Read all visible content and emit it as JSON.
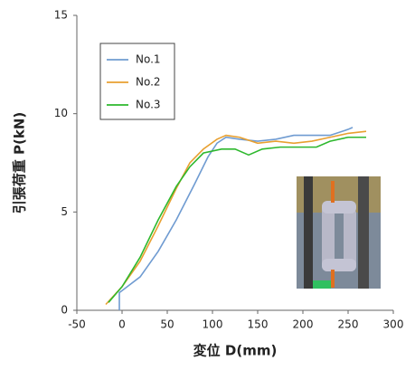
{
  "chart_data": {
    "type": "line",
    "x_label": "変位 D(mm)",
    "y_label": "引張荷重 P(kN)",
    "xlim": [
      -50,
      300
    ],
    "xticks": [
      -50,
      0,
      50,
      100,
      150,
      200,
      250,
      300
    ],
    "ylim": [
      0,
      15
    ],
    "yticks": [
      0,
      5,
      10,
      15
    ],
    "legend": "upper left",
    "series": [
      {
        "name": "No.1",
        "color": "#6f9bd1",
        "x": [
          -3,
          -3,
          0,
          20,
          40,
          60,
          80,
          95,
          105,
          115,
          130,
          150,
          170,
          190,
          210,
          230,
          250,
          255
        ],
        "values": [
          0,
          0.9,
          1.0,
          1.7,
          3.0,
          4.6,
          6.4,
          7.8,
          8.5,
          8.8,
          8.7,
          8.6,
          8.7,
          8.9,
          8.9,
          8.9,
          9.2,
          9.3
        ]
      },
      {
        "name": "No.2",
        "color": "#e8a030",
        "x": [
          -18,
          0,
          20,
          40,
          60,
          75,
          90,
          105,
          115,
          130,
          150,
          170,
          190,
          210,
          230,
          250,
          270
        ],
        "values": [
          0.3,
          1.2,
          2.5,
          4.3,
          6.2,
          7.5,
          8.2,
          8.7,
          8.9,
          8.8,
          8.5,
          8.6,
          8.5,
          8.6,
          8.8,
          9.0,
          9.1
        ]
      },
      {
        "name": "No.3",
        "color": "#2db82d",
        "x": [
          -15,
          0,
          20,
          40,
          60,
          75,
          90,
          110,
          125,
          140,
          155,
          175,
          200,
          215,
          230,
          250,
          270
        ],
        "values": [
          0.4,
          1.2,
          2.7,
          4.6,
          6.3,
          7.3,
          8.0,
          8.2,
          8.2,
          7.9,
          8.2,
          8.3,
          8.3,
          8.3,
          8.6,
          8.8,
          8.8
        ]
      }
    ]
  }
}
